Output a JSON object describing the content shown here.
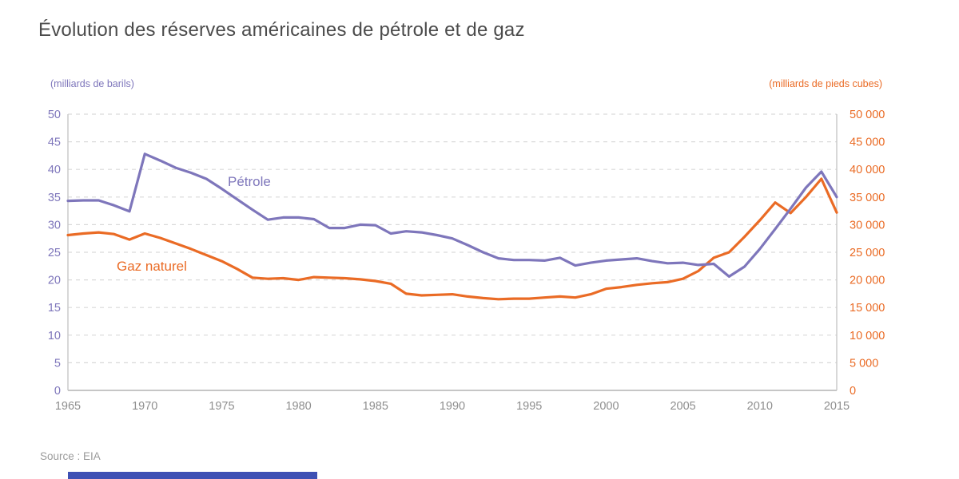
{
  "page": {
    "title": "Évolution des réserves américaines de pétrole et de gaz",
    "source": "Source : EIA"
  },
  "chart_data": {
    "type": "line",
    "title": "Évolution des réserves américaines de pétrole et de gaz",
    "grid": "horizontal-dashed",
    "legend": "inline-labels-near-lines",
    "x_range": [
      1965,
      2015
    ],
    "x": [
      1965,
      1966,
      1967,
      1968,
      1969,
      1970,
      1971,
      1972,
      1973,
      1974,
      1975,
      1976,
      1977,
      1978,
      1979,
      1980,
      1981,
      1982,
      1983,
      1984,
      1985,
      1986,
      1987,
      1988,
      1989,
      1990,
      1991,
      1992,
      1993,
      1994,
      1995,
      1996,
      1997,
      1998,
      1999,
      2000,
      2001,
      2002,
      2003,
      2004,
      2005,
      2006,
      2007,
      2008,
      2009,
      2010,
      2011,
      2012,
      2013,
      2014,
      2015
    ],
    "left_axis": {
      "unit_label": "(milliards de barils)",
      "min": 0,
      "max": 50,
      "tick_step": 5,
      "tick_labels": [
        "0",
        "5",
        "10",
        "15",
        "20",
        "25",
        "30",
        "35",
        "40",
        "45",
        "50"
      ],
      "color": "#7e76bb"
    },
    "right_axis": {
      "unit_label": "(milliards de pieds cubes)",
      "min": 0,
      "max": 50000,
      "tick_step": 5000,
      "tick_labels": [
        "0",
        "5 000",
        "10 000",
        "15 000",
        "20 000",
        "25 000",
        "30 000",
        "35 000",
        "40 000",
        "45 000",
        "50 000"
      ],
      "color": "#ea6b25"
    },
    "x_tick_labels": [
      "1965",
      "1970",
      "1975",
      "1980",
      "1985",
      "1990",
      "1995",
      "2000",
      "2005",
      "2010",
      "2015"
    ],
    "series": [
      {
        "name": "Pétrole",
        "axis": "left",
        "color": "#7e76bb",
        "values": [
          34.3,
          34.4,
          34.4,
          33.5,
          32.4,
          42.8,
          41.6,
          40.3,
          39.4,
          38.3,
          36.5,
          34.6,
          32.7,
          30.9,
          31.3,
          31.3,
          31.0,
          29.4,
          29.4,
          30.0,
          29.9,
          28.4,
          28.8,
          28.6,
          28.1,
          27.5,
          26.3,
          25.0,
          23.9,
          23.6,
          23.6,
          23.5,
          24.0,
          22.6,
          23.1,
          23.5,
          23.7,
          23.9,
          23.4,
          23.0,
          23.1,
          22.7,
          22.9,
          20.6,
          22.4,
          25.6,
          29.2,
          32.9,
          36.7,
          39.6,
          35.0
        ]
      },
      {
        "name": "Gaz naturel",
        "axis": "right",
        "color": "#ea6b25",
        "values": [
          28100,
          28400,
          28600,
          28300,
          27300,
          28400,
          27600,
          26600,
          25600,
          24500,
          23400,
          22000,
          20400,
          20200,
          20300,
          20000,
          20500,
          20400,
          20300,
          20100,
          19800,
          19300,
          17500,
          17200,
          17300,
          17400,
          17000,
          16700,
          16500,
          16600,
          16600,
          16800,
          17000,
          16800,
          17400,
          18400,
          18700,
          19100,
          19400,
          19600,
          20200,
          21600,
          24000,
          25000,
          27800,
          30800,
          34000,
          32100,
          35000,
          38300,
          32200
        ]
      }
    ],
    "styles": {
      "gridline_color": "#d9d9d9",
      "axis_line_color": "#c7c7c7",
      "x_axis_line_color": "#b3b3b3",
      "x_tick_label_color": "#8e8e8e",
      "accent_bar_color": "#3e50b4"
    }
  }
}
